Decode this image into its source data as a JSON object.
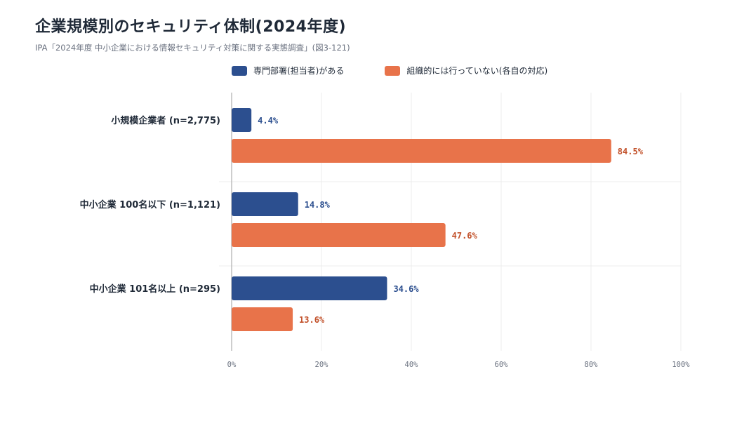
{
  "title": "企業規模別のセキュリティ体制(2024年度)",
  "subtitle": "IPA「2024年度 中小企業における情報セキュリティ対策に関する実態調査」(図3-121)",
  "colors": {
    "series1": "#2c4f8f",
    "series2": "#e8734a"
  },
  "chart_data": {
    "type": "bar",
    "orientation": "horizontal",
    "categories": [
      "小規模企業者 (n=2,775)",
      "中小企業 100名以下 (n=1,121)",
      "中小企業 101名以上 (n=295)"
    ],
    "series": [
      {
        "name": "専門部署(担当者)がある",
        "values": [
          4.4,
          14.8,
          34.6
        ]
      },
      {
        "name": "組織的には行っていない(各自の対応)",
        "values": [
          84.5,
          47.6,
          13.6
        ]
      }
    ],
    "value_labels": [
      [
        "4.4%",
        "14.8%",
        "34.6%"
      ],
      [
        "84.5%",
        "47.6%",
        "13.6%"
      ]
    ],
    "xlim": [
      0,
      100
    ],
    "xticks": [
      0,
      20,
      40,
      60,
      80,
      100
    ],
    "xtick_labels": [
      "0%",
      "20%",
      "40%",
      "60%",
      "80%",
      "100%"
    ],
    "grid": true,
    "legend_position": "top"
  }
}
